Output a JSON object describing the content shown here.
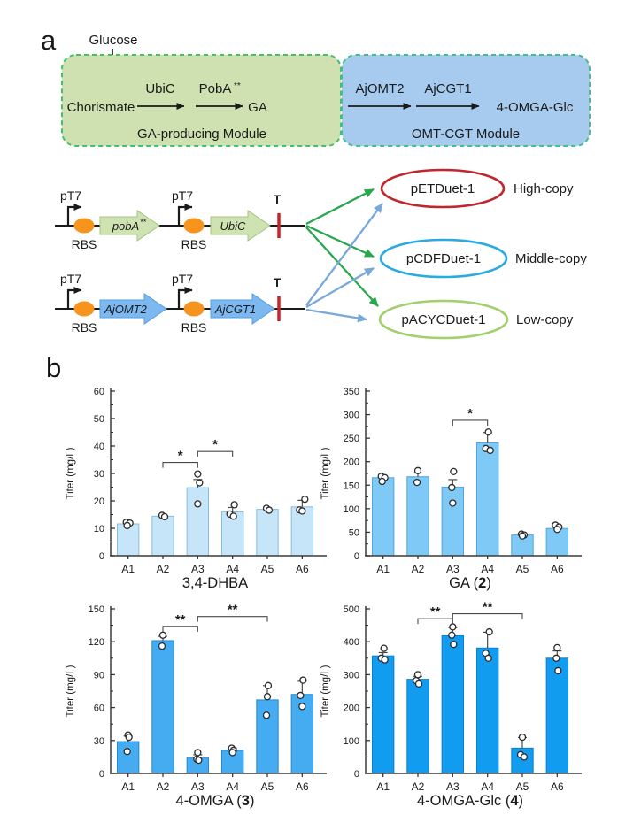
{
  "panel_a": {
    "label": "a",
    "pathway": {
      "substrate": "Glucose",
      "intermediate": "Chorismate",
      "enzyme1": "UbiC",
      "enzyme2": "PobA",
      "enzyme2_sup": "**",
      "product1": "GA",
      "enzyme3": "AjOMT2",
      "enzyme4": "AjCGT1",
      "product2": "4-OMGA-Glc",
      "module1_name": "GA-producing Module",
      "module2_name": "OMT-CGT Module"
    },
    "construct1": {
      "promoter1": "pT7",
      "rbs1": "RBS",
      "gene1": "pobA",
      "gene1_sup": "**",
      "promoter2": "pT7",
      "rbs2": "RBS",
      "gene2": "UbiC",
      "terminator": "T"
    },
    "construct2": {
      "promoter1": "pT7",
      "rbs1": "RBS",
      "gene1": "AjOMT2",
      "promoter2": "pT7",
      "rbs2": "RBS",
      "gene2": "AjCGT1",
      "terminator": "T"
    },
    "plasmids": [
      {
        "name": "pETDuet-1",
        "copy_level": "High-copy",
        "outline_color": "#c0272d"
      },
      {
        "name": "pCDFDuet-1",
        "copy_level": "Middle-copy",
        "outline_color": "#29abe2"
      },
      {
        "name": "pACYCDuet-1",
        "copy_level": "Low-copy",
        "outline_color": "#a3cf6d"
      }
    ],
    "colors": {
      "module1_fill": "#cfe1b0",
      "module1_border": "#45c06a",
      "module2_fill": "#a6cbee",
      "module2_border": "#45bd8e",
      "gene_green_fill": "#cfe2b2",
      "gene_green_edge": "#a4c488",
      "gene_blue_fill": "#7db9f0",
      "gene_blue_edge": "#539fe0",
      "rbs_fill": "#f7941e",
      "terminator_red": "#cc2229",
      "fan_arrow_green": "#28a74e",
      "fan_arrow_blue": "#7aa8d9"
    }
  },
  "panel_b": {
    "label": "b"
  },
  "chart_data": [
    {
      "type": "bar",
      "title_parts": [
        "3,4-DHBA",
        "",
        ""
      ],
      "ylabel": "Titer (mg/L)",
      "xlabel": "",
      "ylim": [
        0,
        60
      ],
      "ystep": 10,
      "grid": false,
      "legend": "none",
      "categories": [
        "A1",
        "A2",
        "A3",
        "A4",
        "A5",
        "A6"
      ],
      "values": [
        11.6,
        14.4,
        24.8,
        16.0,
        16.9,
        17.8
      ],
      "errors": [
        0.8,
        0.4,
        3.0,
        1.6,
        0.6,
        2.4
      ],
      "points": [
        [
          [
            -2,
            12.2
          ],
          [
            2,
            11.9
          ],
          [
            -1,
            11.0
          ]
        ],
        [
          [
            -1,
            14.7
          ],
          [
            2,
            14.2
          ]
        ],
        [
          [
            0,
            29.8
          ],
          [
            2,
            26.6
          ],
          [
            0,
            18.9
          ]
        ],
        [
          [
            2,
            18.6
          ],
          [
            -3,
            15.2
          ],
          [
            1,
            14.4
          ]
        ],
        [
          [
            -1,
            17.3
          ],
          [
            2,
            16.6
          ]
        ],
        [
          [
            3,
            20.6
          ],
          [
            -3,
            16.7
          ],
          [
            0,
            16.3
          ]
        ]
      ],
      "significance": [
        {
          "from": 1,
          "to": 2,
          "y": 34,
          "label": "*"
        },
        {
          "from": 2,
          "to": 3,
          "y": 38,
          "label": "*"
        }
      ],
      "bar_color": "#c7e5f8",
      "bar_edge": "#85bede"
    },
    {
      "type": "bar",
      "title_parts": [
        "GA (",
        "2",
        ")"
      ],
      "ylabel": "Titer (mg/L)",
      "xlabel": "",
      "ylim": [
        0,
        350
      ],
      "ystep": 50,
      "grid": false,
      "legend": "none",
      "categories": [
        "A1",
        "A2",
        "A3",
        "A4",
        "A5",
        "A6"
      ],
      "values": [
        166,
        168,
        146,
        240,
        44,
        58
      ],
      "errors": [
        4,
        8,
        16,
        22,
        2,
        4
      ],
      "points": [
        [
          [
            -2,
            169
          ],
          [
            2,
            166
          ],
          [
            -1,
            158
          ]
        ],
        [
          [
            0,
            181
          ],
          [
            -1,
            156
          ]
        ],
        [
          [
            1,
            179
          ],
          [
            -1,
            145
          ],
          [
            0,
            112
          ]
        ],
        [
          [
            1,
            263
          ],
          [
            -2,
            228
          ],
          [
            3,
            224
          ]
        ],
        [
          [
            -1,
            46
          ],
          [
            2,
            44
          ],
          [
            0,
            42
          ]
        ],
        [
          [
            -2,
            65
          ],
          [
            2,
            61
          ],
          [
            0,
            56
          ]
        ]
      ],
      "significance": [
        {
          "from": 2,
          "to": 3,
          "y": 288,
          "label": "*"
        }
      ],
      "bar_color": "#7ec9f6",
      "bar_edge": "#4fa6dd"
    },
    {
      "type": "bar",
      "title_parts": [
        "4-OMGA (",
        "3",
        ")"
      ],
      "ylabel": "Titer (mg/L)",
      "xlabel": "",
      "ylim": [
        0,
        150
      ],
      "ystep": 30,
      "grid": false,
      "legend": "none",
      "categories": [
        "A1",
        "A2",
        "A3",
        "A4",
        "A5",
        "A6"
      ],
      "values": [
        29,
        121,
        14,
        21,
        67,
        72
      ],
      "errors": [
        5,
        4,
        3,
        2,
        13,
        12
      ],
      "points": [
        [
          [
            0,
            35
          ],
          [
            1,
            33
          ],
          [
            -1,
            20
          ]
        ],
        [
          [
            0,
            126
          ],
          [
            -1,
            116
          ]
        ],
        [
          [
            0,
            19
          ],
          [
            -1,
            13
          ],
          [
            1,
            12
          ]
        ],
        [
          [
            -1,
            23
          ],
          [
            1,
            21
          ],
          [
            0,
            19
          ]
        ],
        [
          [
            1,
            80
          ],
          [
            0,
            70
          ],
          [
            -1,
            53
          ]
        ],
        [
          [
            1,
            85
          ],
          [
            -2,
            71
          ],
          [
            0,
            61
          ]
        ]
      ],
      "significance": [
        {
          "from": 1,
          "to": 2,
          "y": 134,
          "label": "**"
        },
        {
          "from": 2,
          "to": 4,
          "y": 143,
          "label": "**"
        }
      ],
      "bar_color": "#45acf2",
      "bar_edge": "#2589cf"
    },
    {
      "type": "bar",
      "title_parts": [
        "4-OMGA-Glc (",
        "4",
        ")"
      ],
      "ylabel": "Titer (mg/L)",
      "xlabel": "",
      "ylim": [
        0,
        500
      ],
      "ystep": 100,
      "grid": false,
      "legend": "none",
      "categories": [
        "A1",
        "A2",
        "A3",
        "A4",
        "A5",
        "A6"
      ],
      "values": [
        357,
        286,
        418,
        381,
        77,
        350
      ],
      "errors": [
        10,
        9,
        25,
        48,
        32,
        22
      ],
      "points": [
        [
          [
            1,
            380
          ],
          [
            -2,
            350
          ],
          [
            2,
            345
          ]
        ],
        [
          [
            0,
            300
          ],
          [
            -2,
            282
          ],
          [
            1,
            272
          ]
        ],
        [
          [
            0,
            445
          ],
          [
            -1,
            420
          ],
          [
            1,
            392
          ]
        ],
        [
          [
            2,
            430
          ],
          [
            -2,
            365
          ],
          [
            1,
            350
          ]
        ],
        [
          [
            0,
            110
          ],
          [
            -2,
            57
          ],
          [
            2,
            50
          ]
        ],
        [
          [
            0,
            382
          ],
          [
            -1,
            350
          ],
          [
            1,
            312
          ]
        ]
      ],
      "significance": [
        {
          "from": 1,
          "to": 2,
          "y": 470,
          "label": "**"
        },
        {
          "from": 2,
          "to": 4,
          "y": 485,
          "label": "**"
        }
      ],
      "bar_color": "#119cf0",
      "bar_edge": "#0b7fd0"
    }
  ]
}
